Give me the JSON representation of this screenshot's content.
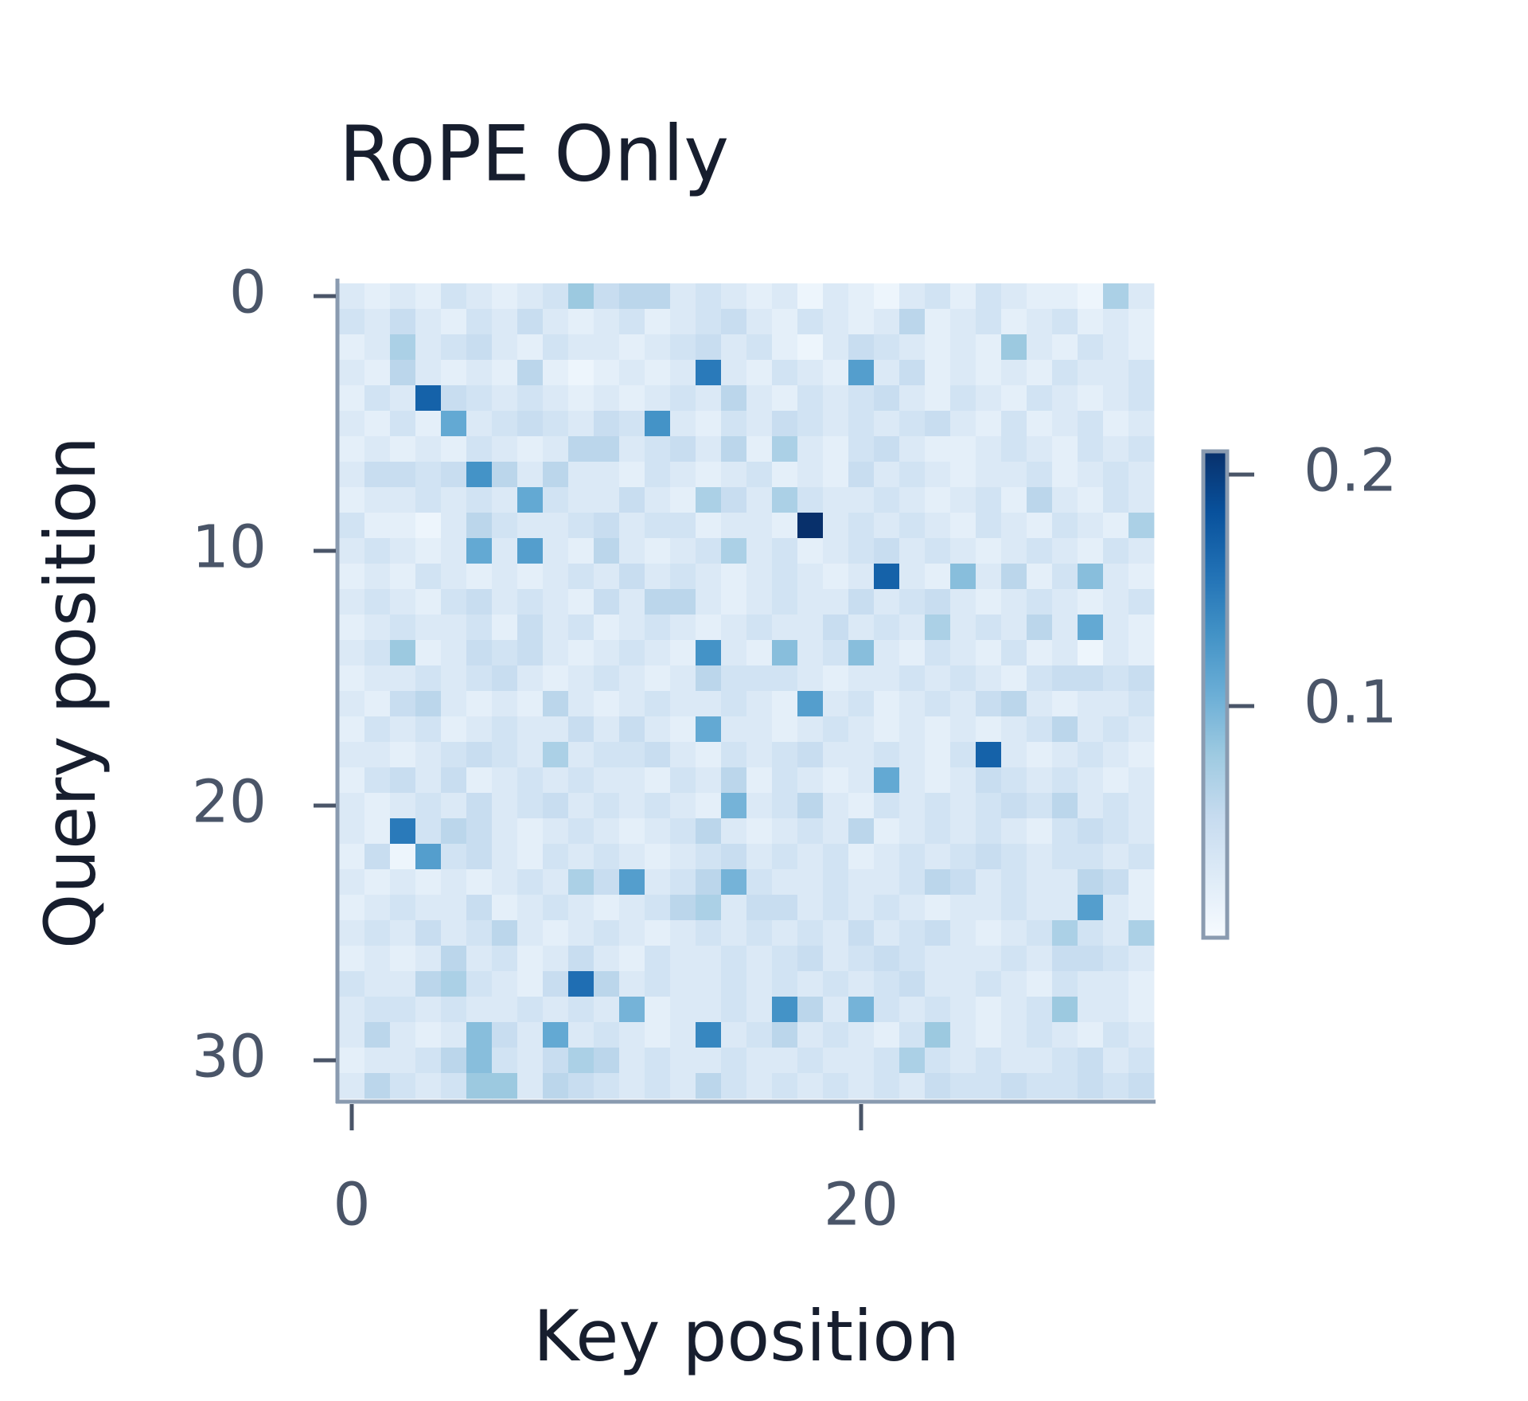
{
  "chart_data": {
    "type": "heatmap",
    "title": "RoPE Only",
    "x_label": "Key position",
    "y_label": "Query position",
    "xlim": [
      -0.5,
      31.5
    ],
    "xticks": [
      0,
      20
    ],
    "ylim": [
      -0.5,
      31.5
    ],
    "yticks": [
      0,
      10,
      20,
      30
    ],
    "colormap": "Blues",
    "clim": [
      0,
      0.21
    ],
    "cticks": [
      0.1,
      0.2
    ],
    "z": [
      [
        0.03,
        0.02,
        0.03,
        0.02,
        0.04,
        0.03,
        0.02,
        0.03,
        0.04,
        0.08,
        0.05,
        0.06,
        0.06,
        0.03,
        0.04,
        0.03,
        0.02,
        0.03,
        0.01,
        0.03,
        0.02,
        0.01,
        0.03,
        0.04,
        0.02,
        0.04,
        0.03,
        0.02,
        0.02,
        0.01,
        0.07,
        0.03
      ],
      [
        0.04,
        0.03,
        0.05,
        0.03,
        0.02,
        0.04,
        0.03,
        0.05,
        0.03,
        0.02,
        0.03,
        0.04,
        0.02,
        0.03,
        0.04,
        0.05,
        0.03,
        0.02,
        0.04,
        0.03,
        0.02,
        0.03,
        0.06,
        0.02,
        0.03,
        0.04,
        0.02,
        0.03,
        0.04,
        0.02,
        0.03,
        0.02
      ],
      [
        0.02,
        0.03,
        0.07,
        0.03,
        0.04,
        0.05,
        0.03,
        0.02,
        0.04,
        0.03,
        0.03,
        0.02,
        0.03,
        0.04,
        0.05,
        0.03,
        0.04,
        0.02,
        0.01,
        0.03,
        0.05,
        0.04,
        0.03,
        0.02,
        0.03,
        0.02,
        0.08,
        0.03,
        0.02,
        0.04,
        0.03,
        0.02
      ],
      [
        0.03,
        0.02,
        0.06,
        0.03,
        0.02,
        0.03,
        0.02,
        0.06,
        0.02,
        0.01,
        0.02,
        0.03,
        0.02,
        0.03,
        0.15,
        0.03,
        0.02,
        0.04,
        0.03,
        0.02,
        0.12,
        0.03,
        0.05,
        0.02,
        0.03,
        0.02,
        0.03,
        0.02,
        0.04,
        0.03,
        0.03,
        0.04
      ],
      [
        0.02,
        0.04,
        0.03,
        0.17,
        0.05,
        0.04,
        0.03,
        0.04,
        0.03,
        0.02,
        0.03,
        0.02,
        0.03,
        0.04,
        0.03,
        0.06,
        0.03,
        0.02,
        0.04,
        0.03,
        0.04,
        0.05,
        0.03,
        0.02,
        0.04,
        0.03,
        0.02,
        0.04,
        0.03,
        0.02,
        0.03,
        0.04
      ],
      [
        0.03,
        0.02,
        0.04,
        0.02,
        0.11,
        0.03,
        0.04,
        0.05,
        0.04,
        0.03,
        0.05,
        0.04,
        0.13,
        0.03,
        0.02,
        0.04,
        0.03,
        0.05,
        0.04,
        0.03,
        0.04,
        0.03,
        0.04,
        0.05,
        0.03,
        0.02,
        0.04,
        0.02,
        0.03,
        0.04,
        0.02,
        0.03
      ],
      [
        0.02,
        0.03,
        0.02,
        0.03,
        0.02,
        0.04,
        0.03,
        0.02,
        0.03,
        0.06,
        0.06,
        0.03,
        0.04,
        0.05,
        0.03,
        0.06,
        0.02,
        0.07,
        0.03,
        0.02,
        0.04,
        0.05,
        0.03,
        0.02,
        0.02,
        0.03,
        0.04,
        0.03,
        0.02,
        0.04,
        0.03,
        0.04
      ],
      [
        0.03,
        0.05,
        0.05,
        0.04,
        0.05,
        0.13,
        0.06,
        0.03,
        0.06,
        0.03,
        0.03,
        0.02,
        0.04,
        0.03,
        0.02,
        0.03,
        0.04,
        0.02,
        0.03,
        0.02,
        0.05,
        0.03,
        0.04,
        0.03,
        0.02,
        0.03,
        0.03,
        0.04,
        0.02,
        0.03,
        0.04,
        0.03
      ],
      [
        0.02,
        0.03,
        0.03,
        0.04,
        0.03,
        0.04,
        0.03,
        0.11,
        0.04,
        0.03,
        0.03,
        0.05,
        0.03,
        0.02,
        0.07,
        0.05,
        0.03,
        0.07,
        0.04,
        0.03,
        0.03,
        0.04,
        0.03,
        0.02,
        0.03,
        0.04,
        0.02,
        0.06,
        0.03,
        0.02,
        0.04,
        0.03
      ],
      [
        0.04,
        0.02,
        0.02,
        0.01,
        0.03,
        0.06,
        0.04,
        0.03,
        0.03,
        0.04,
        0.05,
        0.03,
        0.04,
        0.04,
        0.02,
        0.03,
        0.03,
        0.02,
        0.21,
        0.03,
        0.04,
        0.03,
        0.04,
        0.03,
        0.02,
        0.04,
        0.03,
        0.02,
        0.04,
        0.03,
        0.02,
        0.07
      ],
      [
        0.03,
        0.04,
        0.03,
        0.02,
        0.03,
        0.11,
        0.03,
        0.12,
        0.03,
        0.02,
        0.06,
        0.03,
        0.02,
        0.03,
        0.04,
        0.07,
        0.03,
        0.04,
        0.02,
        0.03,
        0.04,
        0.05,
        0.03,
        0.04,
        0.03,
        0.02,
        0.03,
        0.04,
        0.03,
        0.02,
        0.04,
        0.03
      ],
      [
        0.02,
        0.03,
        0.02,
        0.04,
        0.03,
        0.02,
        0.03,
        0.02,
        0.03,
        0.04,
        0.03,
        0.05,
        0.03,
        0.04,
        0.03,
        0.02,
        0.03,
        0.04,
        0.03,
        0.02,
        0.03,
        0.17,
        0.03,
        0.02,
        0.09,
        0.03,
        0.06,
        0.02,
        0.04,
        0.09,
        0.03,
        0.02
      ],
      [
        0.03,
        0.04,
        0.03,
        0.02,
        0.04,
        0.05,
        0.03,
        0.04,
        0.03,
        0.02,
        0.05,
        0.03,
        0.06,
        0.06,
        0.03,
        0.02,
        0.03,
        0.04,
        0.03,
        0.03,
        0.05,
        0.03,
        0.04,
        0.05,
        0.03,
        0.02,
        0.03,
        0.04,
        0.03,
        0.02,
        0.03,
        0.04
      ],
      [
        0.02,
        0.03,
        0.04,
        0.03,
        0.03,
        0.04,
        0.02,
        0.05,
        0.03,
        0.04,
        0.02,
        0.03,
        0.04,
        0.03,
        0.02,
        0.03,
        0.04,
        0.03,
        0.03,
        0.05,
        0.03,
        0.04,
        0.03,
        0.07,
        0.03,
        0.04,
        0.03,
        0.06,
        0.03,
        0.11,
        0.03,
        0.02
      ],
      [
        0.03,
        0.04,
        0.08,
        0.02,
        0.03,
        0.05,
        0.04,
        0.05,
        0.03,
        0.02,
        0.03,
        0.04,
        0.03,
        0.02,
        0.13,
        0.03,
        0.02,
        0.09,
        0.03,
        0.04,
        0.09,
        0.03,
        0.02,
        0.04,
        0.03,
        0.02,
        0.04,
        0.02,
        0.03,
        0.01,
        0.03,
        0.02
      ],
      [
        0.02,
        0.03,
        0.03,
        0.04,
        0.03,
        0.04,
        0.05,
        0.03,
        0.02,
        0.03,
        0.04,
        0.03,
        0.02,
        0.03,
        0.06,
        0.04,
        0.04,
        0.04,
        0.03,
        0.02,
        0.03,
        0.03,
        0.04,
        0.03,
        0.04,
        0.03,
        0.02,
        0.04,
        0.05,
        0.05,
        0.04,
        0.05
      ],
      [
        0.03,
        0.02,
        0.05,
        0.06,
        0.03,
        0.02,
        0.03,
        0.02,
        0.06,
        0.03,
        0.02,
        0.03,
        0.04,
        0.03,
        0.03,
        0.04,
        0.03,
        0.02,
        0.12,
        0.03,
        0.04,
        0.02,
        0.03,
        0.04,
        0.03,
        0.05,
        0.06,
        0.03,
        0.02,
        0.03,
        0.03,
        0.04
      ],
      [
        0.02,
        0.04,
        0.03,
        0.04,
        0.02,
        0.03,
        0.04,
        0.03,
        0.03,
        0.05,
        0.03,
        0.05,
        0.03,
        0.02,
        0.11,
        0.03,
        0.03,
        0.02,
        0.03,
        0.04,
        0.03,
        0.02,
        0.03,
        0.02,
        0.03,
        0.02,
        0.03,
        0.04,
        0.06,
        0.03,
        0.04,
        0.03
      ],
      [
        0.03,
        0.03,
        0.02,
        0.03,
        0.04,
        0.05,
        0.04,
        0.03,
        0.07,
        0.03,
        0.04,
        0.04,
        0.05,
        0.03,
        0.02,
        0.04,
        0.03,
        0.04,
        0.05,
        0.03,
        0.03,
        0.04,
        0.03,
        0.02,
        0.04,
        0.17,
        0.03,
        0.02,
        0.03,
        0.04,
        0.03,
        0.02
      ],
      [
        0.02,
        0.04,
        0.05,
        0.03,
        0.05,
        0.02,
        0.03,
        0.04,
        0.03,
        0.04,
        0.03,
        0.03,
        0.02,
        0.04,
        0.03,
        0.06,
        0.02,
        0.04,
        0.03,
        0.02,
        0.03,
        0.11,
        0.03,
        0.02,
        0.03,
        0.05,
        0.04,
        0.03,
        0.04,
        0.03,
        0.02,
        0.03
      ],
      [
        0.03,
        0.02,
        0.03,
        0.04,
        0.03,
        0.05,
        0.03,
        0.04,
        0.05,
        0.03,
        0.04,
        0.03,
        0.04,
        0.03,
        0.02,
        0.1,
        0.03,
        0.04,
        0.06,
        0.03,
        0.02,
        0.04,
        0.03,
        0.04,
        0.03,
        0.04,
        0.05,
        0.04,
        0.06,
        0.03,
        0.04,
        0.03
      ],
      [
        0.03,
        0.02,
        0.15,
        0.04,
        0.06,
        0.05,
        0.03,
        0.02,
        0.03,
        0.04,
        0.03,
        0.02,
        0.03,
        0.04,
        0.06,
        0.03,
        0.02,
        0.03,
        0.04,
        0.03,
        0.06,
        0.02,
        0.03,
        0.04,
        0.03,
        0.04,
        0.03,
        0.02,
        0.04,
        0.05,
        0.04,
        0.03
      ],
      [
        0.02,
        0.05,
        0.01,
        0.12,
        0.04,
        0.05,
        0.03,
        0.02,
        0.04,
        0.03,
        0.04,
        0.03,
        0.02,
        0.03,
        0.04,
        0.05,
        0.03,
        0.04,
        0.03,
        0.04,
        0.02,
        0.03,
        0.04,
        0.03,
        0.04,
        0.05,
        0.04,
        0.03,
        0.04,
        0.04,
        0.03,
        0.04
      ],
      [
        0.03,
        0.02,
        0.03,
        0.02,
        0.03,
        0.02,
        0.03,
        0.04,
        0.03,
        0.07,
        0.05,
        0.12,
        0.03,
        0.04,
        0.06,
        0.1,
        0.04,
        0.03,
        0.03,
        0.04,
        0.03,
        0.03,
        0.04,
        0.06,
        0.05,
        0.03,
        0.04,
        0.03,
        0.03,
        0.06,
        0.05,
        0.02
      ],
      [
        0.02,
        0.03,
        0.04,
        0.03,
        0.03,
        0.05,
        0.02,
        0.03,
        0.04,
        0.03,
        0.02,
        0.03,
        0.04,
        0.06,
        0.07,
        0.03,
        0.05,
        0.05,
        0.03,
        0.04,
        0.03,
        0.04,
        0.03,
        0.02,
        0.03,
        0.03,
        0.04,
        0.03,
        0.03,
        0.12,
        0.03,
        0.02
      ],
      [
        0.03,
        0.04,
        0.03,
        0.05,
        0.03,
        0.04,
        0.06,
        0.03,
        0.02,
        0.03,
        0.04,
        0.03,
        0.02,
        0.03,
        0.04,
        0.03,
        0.04,
        0.03,
        0.04,
        0.03,
        0.05,
        0.03,
        0.04,
        0.05,
        0.03,
        0.02,
        0.03,
        0.04,
        0.07,
        0.04,
        0.03,
        0.07
      ],
      [
        0.02,
        0.03,
        0.02,
        0.03,
        0.06,
        0.03,
        0.04,
        0.02,
        0.03,
        0.05,
        0.03,
        0.02,
        0.04,
        0.03,
        0.03,
        0.04,
        0.03,
        0.04,
        0.05,
        0.03,
        0.04,
        0.05,
        0.04,
        0.03,
        0.03,
        0.03,
        0.04,
        0.03,
        0.05,
        0.05,
        0.04,
        0.03
      ],
      [
        0.04,
        0.03,
        0.03,
        0.06,
        0.07,
        0.04,
        0.03,
        0.02,
        0.05,
        0.16,
        0.06,
        0.03,
        0.04,
        0.03,
        0.03,
        0.04,
        0.03,
        0.04,
        0.03,
        0.04,
        0.03,
        0.04,
        0.05,
        0.03,
        0.03,
        0.04,
        0.03,
        0.02,
        0.04,
        0.03,
        0.03,
        0.02
      ],
      [
        0.03,
        0.04,
        0.04,
        0.03,
        0.04,
        0.03,
        0.03,
        0.04,
        0.03,
        0.04,
        0.03,
        0.1,
        0.02,
        0.03,
        0.03,
        0.04,
        0.03,
        0.13,
        0.06,
        0.03,
        0.1,
        0.04,
        0.03,
        0.04,
        0.03,
        0.02,
        0.03,
        0.04,
        0.08,
        0.03,
        0.03,
        0.02
      ],
      [
        0.03,
        0.06,
        0.03,
        0.02,
        0.03,
        0.09,
        0.05,
        0.03,
        0.11,
        0.03,
        0.04,
        0.03,
        0.02,
        0.03,
        0.14,
        0.03,
        0.04,
        0.06,
        0.03,
        0.04,
        0.03,
        0.02,
        0.04,
        0.08,
        0.03,
        0.02,
        0.03,
        0.04,
        0.03,
        0.02,
        0.04,
        0.03
      ],
      [
        0.02,
        0.03,
        0.03,
        0.04,
        0.06,
        0.09,
        0.04,
        0.03,
        0.05,
        0.07,
        0.06,
        0.03,
        0.04,
        0.03,
        0.03,
        0.04,
        0.03,
        0.03,
        0.04,
        0.03,
        0.03,
        0.04,
        0.07,
        0.04,
        0.03,
        0.04,
        0.03,
        0.03,
        0.04,
        0.05,
        0.03,
        0.04
      ],
      [
        0.03,
        0.06,
        0.04,
        0.03,
        0.04,
        0.08,
        0.08,
        0.03,
        0.06,
        0.05,
        0.04,
        0.03,
        0.04,
        0.03,
        0.06,
        0.04,
        0.03,
        0.04,
        0.03,
        0.04,
        0.03,
        0.04,
        0.03,
        0.05,
        0.04,
        0.04,
        0.05,
        0.04,
        0.04,
        0.05,
        0.04,
        0.05
      ]
    ]
  }
}
